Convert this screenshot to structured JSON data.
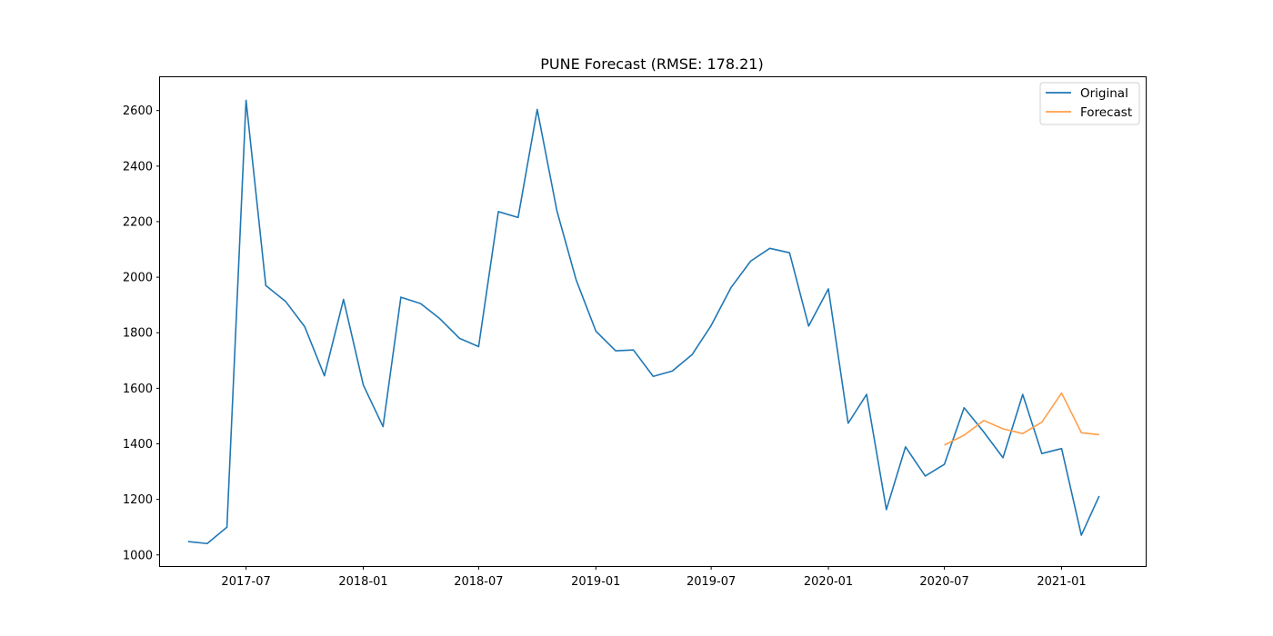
{
  "chart_data": {
    "type": "line",
    "title": "PUNE Forecast (RMSE: 178.21)",
    "xlabel": "",
    "ylabel": "",
    "ylim": [
      960,
      2720
    ],
    "xlim": [
      "2017-02-16",
      "2021-05-13"
    ],
    "grid": false,
    "legend_position": "top-right",
    "x_ticks": [
      "2017-07",
      "2018-01",
      "2018-07",
      "2019-01",
      "2019-07",
      "2020-01",
      "2020-07",
      "2021-01"
    ],
    "y_ticks": [
      1000,
      1200,
      1400,
      1600,
      1800,
      2000,
      2200,
      2400,
      2600
    ],
    "series": [
      {
        "name": "Original",
        "color": "#1f77b4",
        "x": [
          "2017-04",
          "2017-05",
          "2017-06",
          "2017-07",
          "2017-08",
          "2017-09",
          "2017-10",
          "2017-11",
          "2017-12",
          "2018-01",
          "2018-02",
          "2018-03",
          "2018-04",
          "2018-05",
          "2018-06",
          "2018-07",
          "2018-08",
          "2018-09",
          "2018-10",
          "2018-11",
          "2018-12",
          "2019-01",
          "2019-02",
          "2019-03",
          "2019-04",
          "2019-05",
          "2019-06",
          "2019-07",
          "2019-08",
          "2019-09",
          "2019-10",
          "2019-11",
          "2019-12",
          "2020-01",
          "2020-02",
          "2020-03",
          "2020-04",
          "2020-05",
          "2020-06",
          "2020-07",
          "2020-08",
          "2020-09",
          "2020-10",
          "2020-11",
          "2020-12",
          "2021-01",
          "2021-02",
          "2021-03"
        ],
        "values": [
          1048,
          1041,
          1100,
          2637,
          1970,
          1913,
          1822,
          1645,
          1920,
          1612,
          1462,
          1928,
          1905,
          1851,
          1780,
          1750,
          2236,
          2215,
          2604,
          2238,
          1991,
          1806,
          1735,
          1738,
          1643,
          1662,
          1721,
          1826,
          1962,
          2058,
          2104,
          2088,
          1824,
          1958,
          1474,
          1578,
          1163,
          1389,
          1284,
          1326,
          1530,
          1442,
          1350,
          1578,
          1365,
          1383,
          1071,
          1212
        ]
      },
      {
        "name": "Forecast",
        "color": "#ff9f4a",
        "x": [
          "2020-07",
          "2020-08",
          "2020-09",
          "2020-10",
          "2020-11",
          "2020-12",
          "2021-01",
          "2021-02",
          "2021-03"
        ],
        "values": [
          1396,
          1431,
          1484,
          1454,
          1437,
          1478,
          1583,
          1440,
          1433
        ]
      }
    ]
  }
}
